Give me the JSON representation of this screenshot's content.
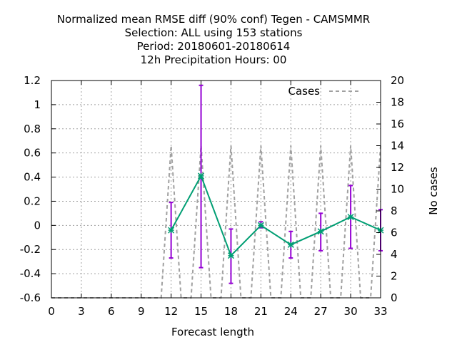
{
  "chart_data": {
    "type": "line",
    "title_lines": [
      "Normalized mean RMSE diff (90% conf) Tegen - CAMSMMR",
      "Selection: ALL using   153 stations",
      "Period: 20180601-20180614",
      "12h Precipitation   Hours:  00"
    ],
    "xlabel": "Forecast length",
    "ylabel": "",
    "y2label": "No cases",
    "xlim": [
      0,
      33
    ],
    "ylim": [
      -0.6,
      1.2
    ],
    "y2lim": [
      0,
      20
    ],
    "x_ticks": [
      0,
      3,
      6,
      9,
      12,
      15,
      18,
      21,
      24,
      27,
      30,
      33
    ],
    "y_ticks": [
      -0.6,
      -0.4,
      -0.2,
      0,
      0.2,
      0.4,
      0.6,
      0.8,
      1,
      1.2
    ],
    "y_tick_labels": [
      "-0.6",
      "-0.4",
      "-0.2",
      "0",
      "0.2",
      "0.4",
      "0.6",
      "0.8",
      "1",
      "1.2"
    ],
    "y2_ticks": [
      0,
      2,
      4,
      6,
      8,
      10,
      12,
      14,
      16,
      18,
      20
    ],
    "grid": true,
    "legend_position": "top-right",
    "series": [
      {
        "name": "",
        "color": "#009e73",
        "x": [
          12,
          15,
          18,
          21,
          24,
          27,
          30,
          33
        ],
        "y": [
          -0.04,
          0.41,
          -0.25,
          0.0,
          -0.16,
          -0.05,
          0.07,
          -0.04
        ]
      },
      {
        "name": "Cases",
        "axis": "y2",
        "color": "#a0a0a0",
        "dash": true,
        "x": [
          0,
          11,
          12,
          13,
          14,
          15,
          16,
          17,
          18,
          19,
          20,
          21,
          22,
          23,
          24,
          25,
          26,
          27,
          28,
          29,
          30,
          31,
          32,
          33
        ],
        "y": [
          0,
          0,
          14,
          0,
          0,
          14,
          0,
          0,
          14,
          0,
          0,
          14,
          0,
          0,
          14,
          0,
          0,
          14,
          0,
          0,
          14,
          0,
          0,
          14
        ]
      }
    ],
    "error_bars": {
      "color": "#9400d3",
      "x": [
        12,
        15,
        18,
        21,
        24,
        27,
        30,
        33
      ],
      "low": [
        -0.27,
        -0.35,
        -0.48,
        -0.02,
        -0.27,
        -0.21,
        -0.19,
        -0.21
      ],
      "high": [
        0.19,
        1.16,
        -0.03,
        0.03,
        -0.05,
        0.1,
        0.33,
        0.13
      ]
    }
  }
}
